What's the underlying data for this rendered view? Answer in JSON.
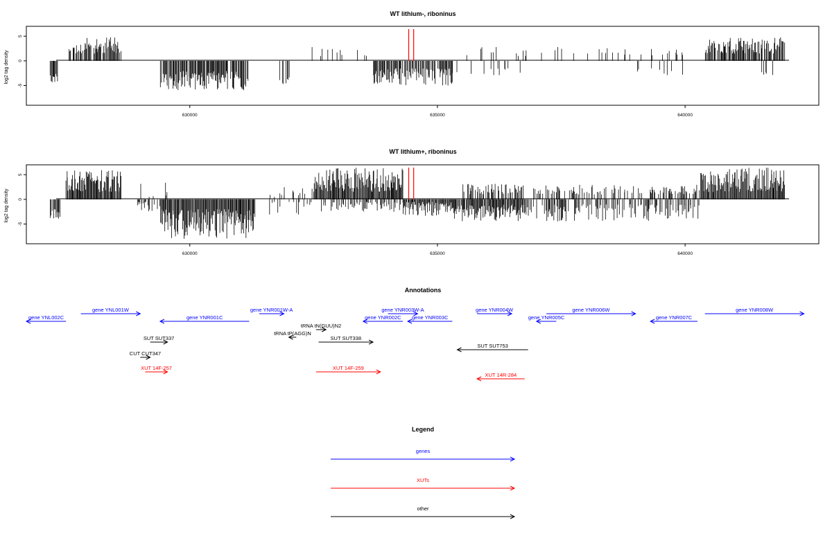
{
  "charts": [
    {
      "title": "WT lithium-, riboninus",
      "ylabel": "log2 tag density",
      "ylim": [
        -9,
        7
      ],
      "yticks": [
        -5,
        0,
        5
      ],
      "seed": 11,
      "regions": [
        {
          "x0": 627170,
          "x1": 627320,
          "dir": -1,
          "lo": 2.5,
          "hi": 5,
          "dens": 0.35
        },
        {
          "x0": 627550,
          "x1": 628600,
          "dir": 1,
          "lo": 1.5,
          "hi": 4.8,
          "dens": 0.22
        },
        {
          "x0": 629400,
          "x1": 631200,
          "dir": -1,
          "lo": 2,
          "hi": 6,
          "dens": 0.28
        },
        {
          "x0": 631800,
          "x1": 632000,
          "dir": -1,
          "lo": 3,
          "hi": 5,
          "dens": 0.12
        },
        {
          "x0": 632400,
          "x1": 633600,
          "dir": 1,
          "lo": 1,
          "hi": 2.8,
          "dens": 0.05
        },
        {
          "x0": 633700,
          "x1": 635300,
          "dir": -1,
          "lo": 1.5,
          "hi": 5,
          "dens": 0.25
        },
        {
          "x0": 635300,
          "x1": 636700,
          "dir": -1,
          "lo": 1.5,
          "hi": 3.5,
          "dens": 0.05
        },
        {
          "x0": 635500,
          "x1": 640200,
          "dir": 1,
          "lo": 1,
          "hi": 2.8,
          "dens": 0.025
        },
        {
          "x0": 638800,
          "x1": 640000,
          "dir": -1,
          "lo": 1.5,
          "hi": 3.5,
          "dens": 0.02
        },
        {
          "x0": 640400,
          "x1": 642000,
          "dir": 1,
          "lo": 1.5,
          "hi": 4.8,
          "dens": 0.25
        },
        {
          "x0": 641500,
          "x1": 641800,
          "dir": -1,
          "lo": 2,
          "hi": 3,
          "dens": 0.03
        }
      ]
    },
    {
      "title": "WT lithium+, riboninus",
      "ylabel": "log2 tag density",
      "ylim": [
        -9,
        7
      ],
      "yticks": [
        -5,
        0,
        5
      ],
      "seed": 29,
      "regions": [
        {
          "x0": 627170,
          "x1": 627400,
          "dir": -1,
          "lo": 2,
          "hi": 4,
          "dens": 0.25
        },
        {
          "x0": 627500,
          "x1": 628600,
          "dir": 1,
          "lo": 1.5,
          "hi": 6,
          "dens": 0.3
        },
        {
          "x0": 628900,
          "x1": 629400,
          "dir": -1,
          "lo": 0.5,
          "hi": 2.5,
          "dens": 0.12
        },
        {
          "x0": 629000,
          "x1": 629600,
          "dir": 1,
          "lo": 0.5,
          "hi": 3.5,
          "dens": 0.05
        },
        {
          "x0": 629400,
          "x1": 631300,
          "dir": -1,
          "lo": 2,
          "hi": 8,
          "dens": 0.6
        },
        {
          "x0": 631300,
          "x1": 632500,
          "dir": 1,
          "lo": 0.5,
          "hi": 2.5,
          "dens": 0.05
        },
        {
          "x0": 631300,
          "x1": 632500,
          "dir": -1,
          "lo": 0.5,
          "hi": 3.5,
          "dens": 0.04
        },
        {
          "x0": 632500,
          "x1": 634300,
          "dir": 1,
          "lo": 1.5,
          "hi": 6.5,
          "dens": 0.45
        },
        {
          "x0": 632600,
          "x1": 634300,
          "dir": -1,
          "lo": 0.5,
          "hi": 2.5,
          "dens": 0.15
        },
        {
          "x0": 634300,
          "x1": 635300,
          "dir": -1,
          "lo": 0.5,
          "hi": 3.5,
          "dens": 0.3
        },
        {
          "x0": 635300,
          "x1": 636800,
          "dir": -1,
          "lo": 1,
          "hi": 4.5,
          "dens": 0.3
        },
        {
          "x0": 635500,
          "x1": 636800,
          "dir": 1,
          "lo": 1,
          "hi": 3.2,
          "dens": 0.14
        },
        {
          "x0": 636800,
          "x1": 640300,
          "dir": 1,
          "lo": 1,
          "hi": 3,
          "dens": 0.12
        },
        {
          "x0": 636800,
          "x1": 640300,
          "dir": -1,
          "lo": 1,
          "hi": 4.5,
          "dens": 0.14
        },
        {
          "x0": 640300,
          "x1": 642000,
          "dir": 1,
          "lo": 1.5,
          "hi": 6.5,
          "dens": 0.55
        }
      ]
    }
  ],
  "chart_data": [
    {
      "type": "bar",
      "title": "WT lithium-, riboninus",
      "ylabel": "log2 tag density",
      "xlim": [
        626700,
        642700
      ],
      "ylim": [
        -9,
        7
      ],
      "xticks": [
        630000,
        635000,
        640000
      ],
      "yticks": [
        -5,
        0,
        5
      ],
      "marker_lines_x": [
        634420,
        634520
      ],
      "marker_color": "#ff0000"
    },
    {
      "type": "bar",
      "title": "WT lithium+, riboninus",
      "ylabel": "log2 tag density",
      "xlim": [
        626700,
        642700
      ],
      "ylim": [
        -9,
        7
      ],
      "xticks": [
        630000,
        635000,
        640000
      ],
      "yticks": [
        -5,
        0,
        5
      ],
      "marker_lines_x": [
        634420,
        634520
      ],
      "marker_color": "#ff0000"
    }
  ],
  "annotations": {
    "title": "Annotations",
    "items": [
      {
        "label": "gene YNL002C",
        "x0": 626700,
        "x1": 627500,
        "dir": -1,
        "row": 1,
        "type": "gene"
      },
      {
        "label": "gene YNL001W",
        "x0": 627800,
        "x1": 629000,
        "dir": 1,
        "row": 0,
        "type": "gene"
      },
      {
        "label": "gene YNR001C",
        "x0": 629400,
        "x1": 631200,
        "dir": -1,
        "row": 1,
        "type": "gene"
      },
      {
        "label": "gene YNR001W-A",
        "x0": 631400,
        "x1": 631900,
        "dir": 1,
        "row": 0,
        "type": "gene"
      },
      {
        "label": "gene YNR002C",
        "x0": 633500,
        "x1": 634300,
        "dir": -1,
        "row": 1,
        "type": "gene"
      },
      {
        "label": "gene YNR003W-A",
        "x0": 634000,
        "x1": 634600,
        "dir": 1,
        "row": 0,
        "type": "gene"
      },
      {
        "label": "gene YNR003C",
        "x0": 634400,
        "x1": 635300,
        "dir": -1,
        "row": 1,
        "type": "gene"
      },
      {
        "label": "gene YNR004W",
        "x0": 635800,
        "x1": 636500,
        "dir": 1,
        "row": 0,
        "type": "gene"
      },
      {
        "label": "gene YNR005C",
        "x0": 637000,
        "x1": 637400,
        "dir": -1,
        "row": 1,
        "type": "gene"
      },
      {
        "label": "gene YNR006W",
        "x0": 637200,
        "x1": 639000,
        "dir": 1,
        "row": 0,
        "type": "gene"
      },
      {
        "label": "gene YNR007C",
        "x0": 639300,
        "x1": 640250,
        "dir": -1,
        "row": 1,
        "type": "gene"
      },
      {
        "label": "gene YNR008W",
        "x0": 640400,
        "x1": 642400,
        "dir": 1,
        "row": 0,
        "type": "gene"
      },
      {
        "label": "tRNA tN(GUU)N2",
        "x0": 632550,
        "x1": 632750,
        "dir": 1,
        "row": 2,
        "type": "other"
      },
      {
        "label": "tRNA tP(AGG)N",
        "x0": 632000,
        "x1": 632150,
        "dir": -1,
        "row": 3,
        "type": "other"
      },
      {
        "label": "SUT SUT337",
        "x0": 629200,
        "x1": 629550,
        "dir": 1,
        "row": 4,
        "type": "other"
      },
      {
        "label": "SUT SUT338",
        "x0": 632600,
        "x1": 633700,
        "dir": 1,
        "row": 4,
        "type": "other"
      },
      {
        "label": "SUT SUT753",
        "x0": 635400,
        "x1": 636830,
        "dir": -1,
        "row": 5,
        "type": "other"
      },
      {
        "label": "CUT CUT347",
        "x0": 629000,
        "x1": 629200,
        "dir": 1,
        "row": 6,
        "type": "other"
      },
      {
        "label": "XUT 14F-257",
        "x0": 629100,
        "x1": 629550,
        "dir": 1,
        "row": 7,
        "type": "xut"
      },
      {
        "label": "XUT 14F-259",
        "x0": 632550,
        "x1": 633850,
        "dir": 1,
        "row": 7,
        "type": "xut"
      },
      {
        "label": "XUT 14R-284",
        "x0": 635800,
        "x1": 636760,
        "dir": -1,
        "row": 8,
        "type": "xut"
      }
    ]
  },
  "legend": {
    "title": "Legend",
    "entries": [
      {
        "label": "genes",
        "color": "#0000ff"
      },
      {
        "label": "XUTs",
        "color": "#ff0000"
      },
      {
        "label": "other",
        "color": "#000000"
      }
    ]
  },
  "colors": {
    "gene": "#0000ff",
    "xut": "#ff0000",
    "other": "#000000",
    "marker": "#ff0000"
  }
}
